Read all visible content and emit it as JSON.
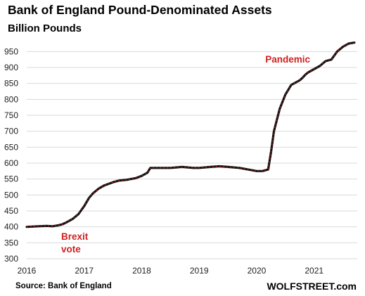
{
  "chart_data": {
    "type": "line",
    "title": "Bank of England Pound-Denominated  Assets",
    "subtitle": "Billion Pounds",
    "xlabel": "",
    "ylabel": "",
    "x_ticks": [
      "2016",
      "2017",
      "2018",
      "2019",
      "2020",
      "2021"
    ],
    "y_ticks": [
      300,
      350,
      400,
      450,
      500,
      550,
      600,
      650,
      700,
      750,
      800,
      850,
      900,
      950
    ],
    "xlim": [
      2016.0,
      2021.75
    ],
    "ylim": [
      300,
      975
    ],
    "grid": "horizontal",
    "series": [
      {
        "color": "#111111",
        "accent_color": "#d11f1f",
        "x": [
          2016.0,
          2016.2,
          2016.35,
          2016.45,
          2016.55,
          2016.62,
          2016.7,
          2016.8,
          2016.9,
          2017.0,
          2017.08,
          2017.15,
          2017.25,
          2017.35,
          2017.5,
          2017.6,
          2017.75,
          2017.9,
          2018.0,
          2018.1,
          2018.15,
          2018.5,
          2018.7,
          2018.9,
          2019.0,
          2019.2,
          2019.35,
          2019.5,
          2019.7,
          2019.85,
          2020.0,
          2020.1,
          2020.2,
          2020.25,
          2020.3,
          2020.4,
          2020.5,
          2020.6,
          2020.7,
          2020.75,
          2020.8,
          2020.85,
          2020.9,
          2021.0,
          2021.1,
          2021.2,
          2021.3,
          2021.4,
          2021.5,
          2021.6,
          2021.7
        ],
        "values": [
          400,
          402,
          403,
          402,
          405,
          408,
          415,
          425,
          440,
          465,
          490,
          505,
          520,
          530,
          540,
          545,
          548,
          553,
          560,
          570,
          585,
          585,
          588,
          585,
          585,
          588,
          590,
          588,
          585,
          580,
          575,
          575,
          580,
          635,
          700,
          770,
          815,
          845,
          855,
          860,
          868,
          878,
          885,
          895,
          905,
          920,
          925,
          950,
          965,
          975,
          978
        ]
      }
    ],
    "annotations": [
      {
        "text_lines": [
          "Brexit",
          "vote"
        ],
        "x": 2016.6,
        "y": 360
      },
      {
        "text_lines": [
          "Pandemic"
        ],
        "x": 2020.15,
        "y": 915
      }
    ],
    "source": "Source: Bank of England",
    "brand": "WOLFSTREET.com"
  }
}
